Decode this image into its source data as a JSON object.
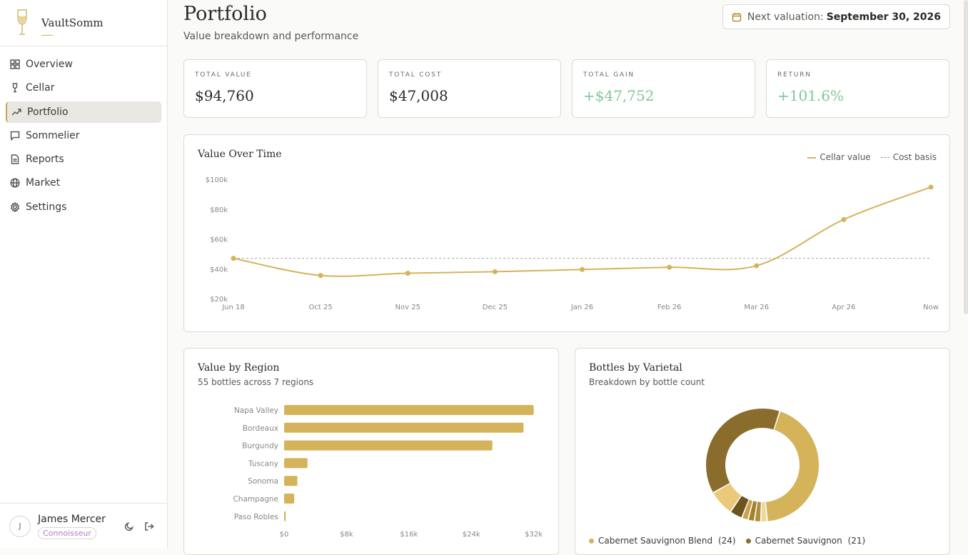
{
  "brand": {
    "name": "VaultSomm"
  },
  "nav": [
    {
      "label": "Overview",
      "icon": "grid-icon",
      "active": false
    },
    {
      "label": "Cellar",
      "icon": "wine-glass-icon",
      "active": false
    },
    {
      "label": "Portfolio",
      "icon": "trending-up-icon",
      "active": true
    },
    {
      "label": "Sommelier",
      "icon": "chat-icon",
      "active": false
    },
    {
      "label": "Reports",
      "icon": "document-icon",
      "active": false
    },
    {
      "label": "Market",
      "icon": "globe-icon",
      "active": false
    },
    {
      "label": "Settings",
      "icon": "gear-icon",
      "active": false
    }
  ],
  "user": {
    "initial": "J",
    "name": "James Mercer",
    "badge": "Connoisseur"
  },
  "header": {
    "title": "Portfolio",
    "subtitle": "Value breakdown and performance",
    "valuation_label": "Next valuation:",
    "valuation_date": "September 30, 2026"
  },
  "stats": [
    {
      "label": "Total Value",
      "value": "$94,760",
      "positive": false
    },
    {
      "label": "Total Cost",
      "value": "$47,008",
      "positive": false
    },
    {
      "label": "Total Gain",
      "value": "+$47,752",
      "positive": true
    },
    {
      "label": "Return",
      "value": "+101.6%",
      "positive": true
    }
  ],
  "colors": {
    "accent": "#d4b35a",
    "positive": "#7ec89a",
    "dark_gold": "#8a6d2c"
  },
  "charts": {
    "value_over_time": {
      "title": "Value Over Time",
      "legend": [
        "Cellar value",
        "Cost basis"
      ]
    },
    "region": {
      "title": "Value by Region",
      "subtitle": "55 bottles across 7 regions"
    },
    "varietal": {
      "title": "Bottles by Varietal",
      "subtitle": "Breakdown by bottle count",
      "legend": [
        {
          "label": "Cabernet Sauvignon Blend",
          "count": "(24)",
          "color": "#d4b35a"
        },
        {
          "label": "Cabernet Sauvignon",
          "count": "(21)",
          "color": "#8a6d2c"
        }
      ]
    }
  },
  "chart_data": [
    {
      "type": "line",
      "title": "Value Over Time",
      "x": [
        "Jun 18",
        "Oct 25",
        "Nov 25",
        "Dec 25",
        "Jan 26",
        "Feb 26",
        "Mar 26",
        "Apr 26",
        "Now"
      ],
      "y_ticks": [
        "$100k",
        "$80k",
        "$60k",
        "$40k",
        "$20k"
      ],
      "ylim": [
        20000,
        100000
      ],
      "series": [
        {
          "name": "Cellar value",
          "values": [
            47000,
            35500,
            37000,
            38000,
            39500,
            41000,
            42000,
            73000,
            94760
          ]
        },
        {
          "name": "Cost basis",
          "values": [
            47008,
            47008,
            47008,
            47008,
            47008,
            47008,
            47008,
            47008,
            47008
          ]
        }
      ]
    },
    {
      "type": "bar",
      "orientation": "horizontal",
      "title": "Value by Region",
      "categories": [
        "Napa Valley",
        "Bordeaux",
        "Burgundy",
        "Tuscany",
        "Sonoma",
        "Champagne",
        "Paso Robles"
      ],
      "values": [
        32000,
        30700,
        26700,
        3000,
        1700,
        1300,
        200
      ],
      "x_ticks": [
        "$0",
        "$8k",
        "$16k",
        "$24k",
        "$32k"
      ],
      "xlim": [
        0,
        33500
      ]
    },
    {
      "type": "pie",
      "title": "Bottles by Varietal",
      "slices": [
        {
          "value": 24,
          "color": "#d4b35a"
        },
        {
          "value": 1,
          "color": "#ecd9a0"
        },
        {
          "value": 1,
          "color": "#b38f3c"
        },
        {
          "value": 1,
          "color": "#a0812f"
        },
        {
          "value": 1,
          "color": "#c9a24c"
        },
        {
          "value": 2,
          "color": "#6b5420"
        },
        {
          "value": 4,
          "color": "#ebc87a"
        },
        {
          "value": 21,
          "color": "#8a6d2c"
        }
      ]
    }
  ]
}
